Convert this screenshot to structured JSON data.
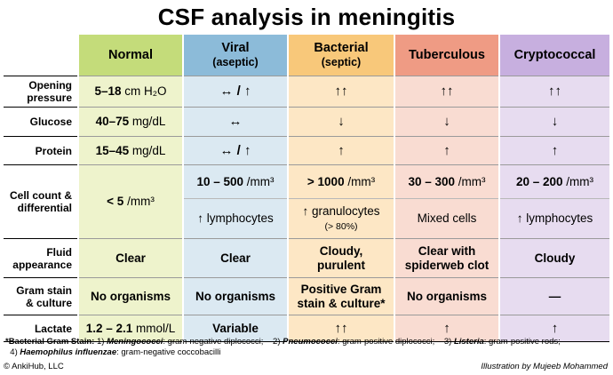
{
  "title": "CSF analysis in meningitis",
  "columns": {
    "normal": {
      "label": "Normal",
      "sub": ""
    },
    "viral": {
      "label": "Viral",
      "sub": "(aseptic)"
    },
    "bacterial": {
      "label": "Bacterial",
      "sub": "(septic)"
    },
    "tuberculous": {
      "label": "Tuberculous",
      "sub": ""
    },
    "cryptococcal": {
      "label": "Cryptococcal",
      "sub": ""
    }
  },
  "rows": {
    "opening_pressure": {
      "label_line1": "Opening",
      "label_line2": "pressure",
      "normal_value": "5–18",
      "normal_unit": "cm H₂O",
      "viral": "↔ / ↑",
      "bacterial": "↑↑",
      "tuberculous": "↑↑",
      "cryptococcal": "↑↑"
    },
    "glucose": {
      "label": "Glucose",
      "normal_value": "40–75",
      "normal_unit": "mg/dL",
      "viral": "↔",
      "bacterial": "↓",
      "tuberculous": "↓",
      "cryptococcal": "↓"
    },
    "protein": {
      "label": "Protein",
      "normal_value": "15–45",
      "normal_unit": "mg/dL",
      "viral": "↔ / ↑",
      "bacterial": "↑",
      "tuberculous": "↑",
      "cryptococcal": "↑"
    },
    "cell_count": {
      "label_line1": "Cell count &",
      "label_line2": "differential",
      "normal_value": "< 5",
      "normal_unit": "/mm³",
      "viral_count": "10 – 500",
      "viral_unit": "/mm³",
      "bacterial_count": "> 1000",
      "bacterial_unit": "/mm³",
      "tuberculous_count": "30 – 300",
      "tuberculous_unit": "/mm³",
      "cryptococcal_count": "20 – 200",
      "cryptococcal_unit": "/mm³",
      "viral_diff": "↑ lymphocytes",
      "bacterial_diff": "↑ granulocytes",
      "bacterial_diff_sub": "(> 80%)",
      "tuberculous_diff": "Mixed cells",
      "cryptococcal_diff": "↑ lymphocytes"
    },
    "fluid": {
      "label_line1": "Fluid",
      "label_line2": "appearance",
      "normal": "Clear",
      "viral": "Clear",
      "bacterial_line1": "Cloudy,",
      "bacterial_line2": "purulent",
      "tuberculous_line1": "Clear with",
      "tuberculous_line2": "spiderweb clot",
      "cryptococcal": "Cloudy"
    },
    "gram": {
      "label_line1": "Gram stain",
      "label_line2": "& culture",
      "normal": "No organisms",
      "viral": "No organisms",
      "bacterial_line1": "Positive Gram",
      "bacterial_line2": "stain & culture*",
      "tuberculous": "No organisms",
      "cryptococcal": "—"
    },
    "lactate": {
      "label": "Lactate",
      "normal_value": "1.2 – 2.1",
      "normal_unit": "mmol/L",
      "viral": "Variable",
      "bacterial": "↑↑",
      "tuberculous": "↑",
      "cryptococcal": "↑"
    }
  },
  "footnote": {
    "lead": "*Bacterial Gram Stain:",
    "n1": "1)",
    "org1": "Meningococci",
    "desc1": ": gram-negative diplococci;",
    "n2": "2)",
    "org2": "Pneumococci",
    "desc2": ": gram-positive diplococci;",
    "n3": "3)",
    "org3": "Listeria",
    "desc3": ": gram-positive rods;",
    "n4": "4)",
    "org4": "Haemophilus influenzae",
    "desc4": ": gram-negative coccobacilli"
  },
  "copyright": "© AnkiHub, LLC",
  "credit": "Illustration by Mujeeb Mohammed"
}
